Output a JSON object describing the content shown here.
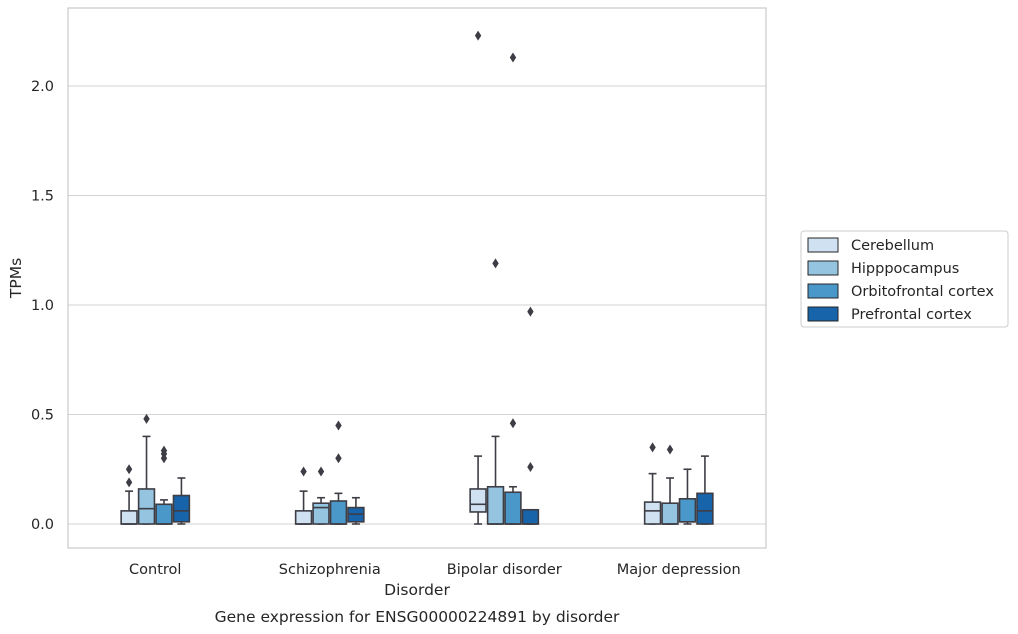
{
  "chart_data": {
    "type": "box",
    "title": "Gene expression for ENSG00000224891 by disorder",
    "xlabel": "Disorder",
    "ylabel": "TPMs",
    "categories": [
      "Control",
      "Schizophrenia",
      "Bipolar disorder",
      "Major depression"
    ],
    "ylim": [
      -0.11,
      2.35
    ],
    "yticks": [
      0.0,
      0.5,
      1.0,
      1.5,
      2.0
    ],
    "ytick_labels": [
      "0.0",
      "0.5",
      "1.0",
      "1.5",
      "2.0"
    ],
    "grid": true,
    "legend_position": "right",
    "series": [
      {
        "name": "Cerebellum",
        "color": "#d0e1f2",
        "boxes": [
          {
            "low": 0.0,
            "q1": 0.0,
            "median": 0.0,
            "q3": 0.06,
            "high": 0.15,
            "outliers": [
              0.19,
              0.25
            ]
          },
          {
            "low": 0.0,
            "q1": 0.0,
            "median": 0.0,
            "q3": 0.06,
            "high": 0.15,
            "outliers": [
              0.24
            ]
          },
          {
            "low": 0.0,
            "q1": 0.055,
            "median": 0.09,
            "q3": 0.16,
            "high": 0.31,
            "outliers": [
              2.23
            ]
          },
          {
            "low": 0.0,
            "q1": 0.0,
            "median": 0.06,
            "q3": 0.1,
            "high": 0.23,
            "outliers": [
              0.35
            ]
          }
        ]
      },
      {
        "name": "Hipppocampus",
        "color": "#94c4df",
        "boxes": [
          {
            "low": 0.0,
            "q1": 0.0,
            "median": 0.07,
            "q3": 0.16,
            "high": 0.4,
            "outliers": [
              0.48
            ]
          },
          {
            "low": 0.0,
            "q1": 0.0,
            "median": 0.075,
            "q3": 0.095,
            "high": 0.12,
            "outliers": [
              0.24
            ]
          },
          {
            "low": 0.0,
            "q1": 0.0,
            "median": 0.0,
            "q3": 0.17,
            "high": 0.4,
            "outliers": [
              1.19
            ]
          },
          {
            "low": 0.0,
            "q1": 0.0,
            "median": 0.0,
            "q3": 0.095,
            "high": 0.21,
            "outliers": [
              0.34
            ]
          }
        ]
      },
      {
        "name": "Orbitofrontal cortex",
        "color": "#4a98c9",
        "boxes": [
          {
            "low": 0.0,
            "q1": 0.0,
            "median": 0.0,
            "q3": 0.09,
            "high": 0.11,
            "outliers": [
              0.3,
              0.32,
              0.335
            ]
          },
          {
            "low": 0.0,
            "q1": 0.0,
            "median": 0.0,
            "q3": 0.105,
            "high": 0.14,
            "outliers": [
              0.3,
              0.45
            ]
          },
          {
            "low": 0.0,
            "q1": 0.0,
            "median": 0.0,
            "q3": 0.145,
            "high": 0.17,
            "outliers": [
              0.46,
              2.13
            ]
          },
          {
            "low": 0.0,
            "q1": 0.01,
            "median": 0.01,
            "q3": 0.115,
            "high": 0.25,
            "outliers": []
          }
        ]
      },
      {
        "name": "Prefrontal cortex",
        "color": "#1764ab",
        "boxes": [
          {
            "low": 0.0,
            "q1": 0.01,
            "median": 0.06,
            "q3": 0.13,
            "high": 0.21,
            "outliers": []
          },
          {
            "low": 0.0,
            "q1": 0.01,
            "median": 0.045,
            "q3": 0.075,
            "high": 0.12,
            "outliers": []
          },
          {
            "low": 0.0,
            "q1": 0.0,
            "median": 0.0,
            "q3": 0.065,
            "high": 0.065,
            "outliers": [
              0.26,
              0.97
            ]
          },
          {
            "low": 0.0,
            "q1": 0.0,
            "median": 0.06,
            "q3": 0.14,
            "high": 0.31,
            "outliers": []
          }
        ]
      }
    ]
  }
}
